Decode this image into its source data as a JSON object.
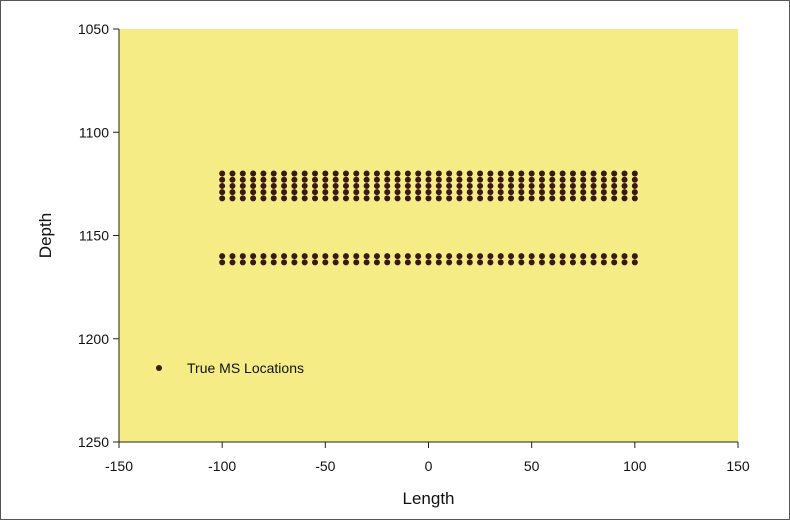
{
  "chart_data": {
    "type": "scatter",
    "title": "",
    "xlabel": "Length",
    "ylabel": "Depth",
    "xlim": [
      -150,
      150
    ],
    "ylim": [
      1050,
      1250
    ],
    "y_inverted": true,
    "xticks": [
      -150,
      -100,
      -50,
      0,
      50,
      100,
      150
    ],
    "yticks": [
      1050,
      1100,
      1150,
      1200,
      1250
    ],
    "grid": false,
    "legend_position": "bottom-left",
    "colors": {
      "plot_background": "#f5ec86",
      "marker": "#3a1a10",
      "axis": "#222222"
    },
    "series": [
      {
        "name": "True MS Locations",
        "marker": "circle",
        "x_grid": {
          "start": -100,
          "end": 100,
          "step": 5
        },
        "depths": [
          1120,
          1123,
          1126,
          1129,
          1132,
          1160,
          1163
        ]
      }
    ]
  }
}
